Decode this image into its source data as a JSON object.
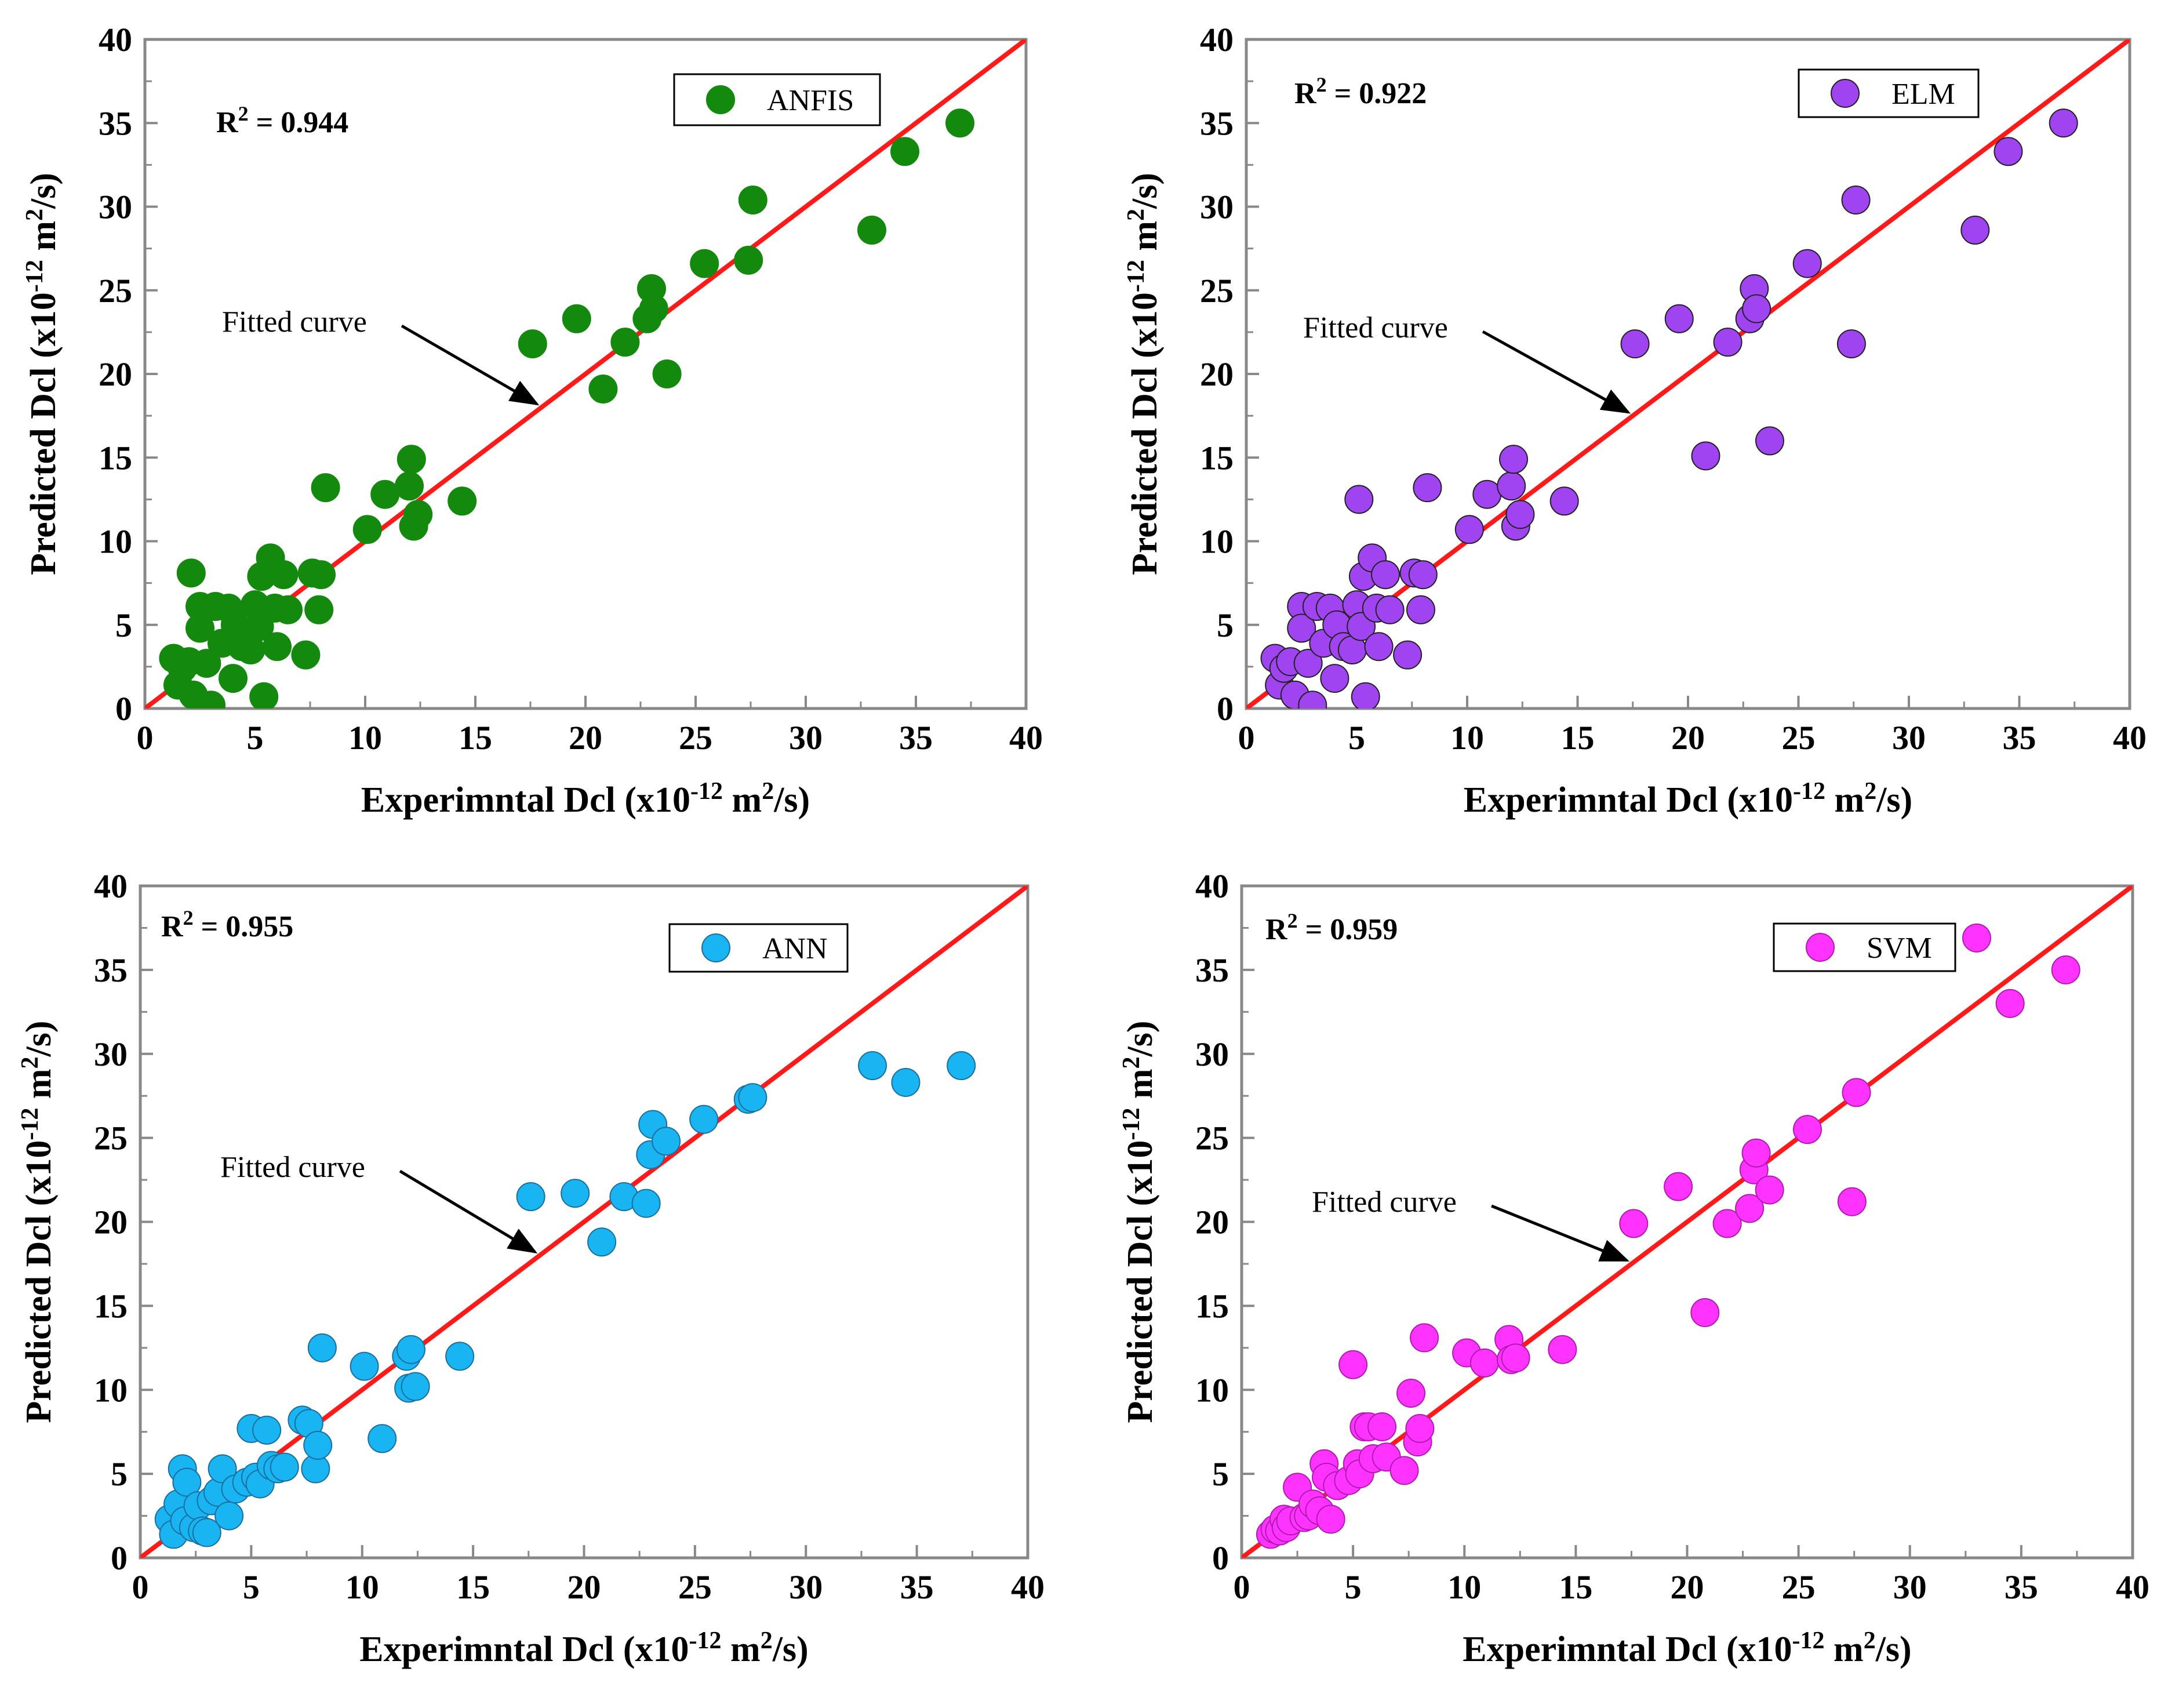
{
  "chart_data": [
    {
      "type": "scatter",
      "model": "ANFIS",
      "legend_label": "ANFIS",
      "r2_text": "R",
      "r2_sup": "2",
      "r2_value": " = 0.944",
      "annotation": "Fitted curve",
      "annotation_target": [
        18,
        18
      ],
      "xlabel_main": "Experimntal Dcl (x10",
      "xlabel_sup1": "-12",
      "xlabel_mid": " m",
      "xlabel_sup2": "2",
      "xlabel_end": "/s)",
      "ylabel_main": "Predicted Dcl (x10",
      "ylabel_sup1": "-12",
      "ylabel_mid": " m",
      "ylabel_sup2": "2",
      "ylabel_end": "/s)",
      "xlim": [
        0,
        40
      ],
      "ylim": [
        0,
        40
      ],
      "xticks": [
        "0",
        "5",
        "10",
        "15",
        "20",
        "25",
        "30",
        "35",
        "40"
      ],
      "yticks": [
        "0",
        "5",
        "10",
        "15",
        "20",
        "25",
        "30",
        "35",
        "40"
      ],
      "fit_line": [
        [
          0,
          0
        ],
        [
          40,
          40
        ]
      ],
      "marker_color": "#138a0e",
      "marker_edge": "#138a0e",
      "line_color": "#ff1a1a",
      "points": [
        [
          1.3,
          3
        ],
        [
          1.5,
          1.4
        ],
        [
          1.7,
          2.4
        ],
        [
          2,
          2.8
        ],
        [
          2.1,
          8.1
        ],
        [
          2.2,
          0.8
        ],
        [
          2.5,
          6.1
        ],
        [
          2.5,
          4.8
        ],
        [
          2.8,
          2.7
        ],
        [
          3,
          0.2
        ],
        [
          3.2,
          6.1
        ],
        [
          3.5,
          3.9
        ],
        [
          3.8,
          6
        ],
        [
          4,
          1.8
        ],
        [
          4.1,
          5
        ],
        [
          4.4,
          3.7
        ],
        [
          4.8,
          3.5
        ],
        [
          5,
          6.2
        ],
        [
          5.2,
          4.9
        ],
        [
          5.3,
          7.9
        ],
        [
          5.4,
          0.7
        ],
        [
          5.7,
          9
        ],
        [
          5.9,
          6
        ],
        [
          6,
          3.7
        ],
        [
          6.3,
          8
        ],
        [
          6.5,
          5.9
        ],
        [
          7.3,
          3.2
        ],
        [
          7.6,
          8.1
        ],
        [
          7.9,
          5.9
        ],
        [
          8,
          8
        ],
        [
          8.2,
          13.2
        ],
        [
          10.1,
          10.7
        ],
        [
          10.9,
          12.8
        ],
        [
          12,
          13.3
        ],
        [
          12.1,
          14.9
        ],
        [
          12.2,
          10.9
        ],
        [
          12.4,
          11.6
        ],
        [
          14.4,
          12.4
        ],
        [
          17.6,
          21.8
        ],
        [
          19.6,
          23.3
        ],
        [
          20.8,
          19.1
        ],
        [
          21.8,
          21.9
        ],
        [
          22.8,
          23.3
        ],
        [
          23,
          25.1
        ],
        [
          23.1,
          23.9
        ],
        [
          23.7,
          20
        ],
        [
          25.4,
          26.6
        ],
        [
          27.4,
          26.8
        ],
        [
          27.6,
          30.4
        ],
        [
          33,
          28.6
        ],
        [
          34.5,
          33.3
        ],
        [
          37,
          35
        ]
      ]
    },
    {
      "type": "scatter",
      "model": "ELM",
      "legend_label": "ELM",
      "r2_text": "R",
      "r2_sup": "2",
      "r2_value": " = 0.922",
      "annotation": "Fitted curve",
      "annotation_target": [
        17.5,
        17.5
      ],
      "xlabel_main": "Experimntal Dcl (x10",
      "xlabel_sup1": "-12",
      "xlabel_mid": " m",
      "xlabel_sup2": "2",
      "xlabel_end": "/s)",
      "ylabel_main": "Predicted Dcl (x10",
      "ylabel_sup1": "-12",
      "ylabel_mid": " m",
      "ylabel_sup2": "2",
      "ylabel_end": "/s)",
      "xlim": [
        0,
        40
      ],
      "ylim": [
        0,
        40
      ],
      "xticks": [
        "0",
        "5",
        "10",
        "15",
        "20",
        "25",
        "30",
        "35",
        "40"
      ],
      "yticks": [
        "0",
        "5",
        "10",
        "15",
        "20",
        "25",
        "30",
        "35",
        "40"
      ],
      "fit_line": [
        [
          0,
          0
        ],
        [
          40,
          40
        ]
      ],
      "marker_color": "#a044f2",
      "marker_edge": "#222222",
      "line_color": "#ff1a1a",
      "points": [
        [
          1.3,
          3
        ],
        [
          1.5,
          1.4
        ],
        [
          1.7,
          2.4
        ],
        [
          2,
          2.8
        ],
        [
          2.2,
          0.8
        ],
        [
          2.5,
          6.1
        ],
        [
          2.5,
          4.8
        ],
        [
          2.8,
          2.7
        ],
        [
          3,
          0.2
        ],
        [
          3.2,
          6.1
        ],
        [
          3.5,
          3.9
        ],
        [
          3.8,
          6
        ],
        [
          4,
          1.8
        ],
        [
          4.1,
          5
        ],
        [
          4.4,
          3.7
        ],
        [
          4.8,
          3.5
        ],
        [
          5,
          6.2
        ],
        [
          5.1,
          12.5
        ],
        [
          5.2,
          4.9
        ],
        [
          5.3,
          7.9
        ],
        [
          5.4,
          0.7
        ],
        [
          5.7,
          9
        ],
        [
          5.9,
          6
        ],
        [
          6,
          3.7
        ],
        [
          6.3,
          8
        ],
        [
          6.5,
          5.9
        ],
        [
          7.3,
          3.2
        ],
        [
          7.6,
          8.1
        ],
        [
          7.9,
          5.9
        ],
        [
          8,
          8
        ],
        [
          8.2,
          13.2
        ],
        [
          10.1,
          10.7
        ],
        [
          10.9,
          12.8
        ],
        [
          12,
          13.3
        ],
        [
          12.1,
          14.9
        ],
        [
          12.2,
          10.9
        ],
        [
          12.4,
          11.6
        ],
        [
          14.4,
          12.4
        ],
        [
          17.6,
          21.8
        ],
        [
          19.6,
          23.3
        ],
        [
          20.8,
          15.1
        ],
        [
          21.8,
          21.9
        ],
        [
          22.8,
          23.3
        ],
        [
          23,
          25.1
        ],
        [
          23.1,
          23.9
        ],
        [
          23.7,
          16
        ],
        [
          25.4,
          26.6
        ],
        [
          27.4,
          21.8
        ],
        [
          27.6,
          30.4
        ],
        [
          33,
          28.6
        ],
        [
          34.5,
          33.3
        ],
        [
          37,
          35
        ]
      ]
    },
    {
      "type": "scatter",
      "model": "ANN",
      "legend_label": "ANN",
      "r2_text": "R",
      "r2_sup": "2",
      "r2_value": " = 0.955",
      "annotation": "Fitted curve",
      "annotation_target": [
        18,
        18
      ],
      "xlabel_main": "Experimntal Dcl (x10",
      "xlabel_sup1": "-12",
      "xlabel_mid": " m",
      "xlabel_sup2": "2",
      "xlabel_end": "/s)",
      "ylabel_main": "Predicted Dcl (x10",
      "ylabel_sup1": "-12",
      "ylabel_mid": " m",
      "ylabel_sup2": "2",
      "ylabel_end": "/s)",
      "xlim": [
        0,
        40
      ],
      "ylim": [
        0,
        40
      ],
      "xticks": [
        "0",
        "5",
        "10",
        "15",
        "20",
        "25",
        "30",
        "35",
        "40"
      ],
      "yticks": [
        "0",
        "5",
        "10",
        "15",
        "20",
        "25",
        "30",
        "35",
        "40"
      ],
      "fit_line": [
        [
          0,
          0
        ],
        [
          40,
          40
        ]
      ],
      "marker_color": "#19b4f2",
      "marker_edge": "#1a6fa0",
      "line_color": "#ff1a1a",
      "points": [
        [
          1.3,
          2.3
        ],
        [
          1.5,
          1.4
        ],
        [
          1.7,
          3.2
        ],
        [
          1.9,
          5.3
        ],
        [
          2,
          2.2
        ],
        [
          2.1,
          4.5
        ],
        [
          2.4,
          1.8
        ],
        [
          2.6,
          3.1
        ],
        [
          2.8,
          1.6
        ],
        [
          3,
          1.5
        ],
        [
          3.2,
          3.4
        ],
        [
          3.5,
          3.9
        ],
        [
          3.7,
          5.3
        ],
        [
          4,
          2.5
        ],
        [
          4.3,
          4.1
        ],
        [
          4.8,
          4.5
        ],
        [
          5,
          7.7
        ],
        [
          5.2,
          4.8
        ],
        [
          5.4,
          4.4
        ],
        [
          5.7,
          7.6
        ],
        [
          5.9,
          5.5
        ],
        [
          6.2,
          5.3
        ],
        [
          6.5,
          5.4
        ],
        [
          7.3,
          8.2
        ],
        [
          7.6,
          8
        ],
        [
          7.9,
          5.3
        ],
        [
          8,
          6.7
        ],
        [
          8.2,
          12.5
        ],
        [
          10.1,
          11.4
        ],
        [
          10.9,
          7.1
        ],
        [
          12,
          12
        ],
        [
          12.1,
          10.1
        ],
        [
          12.2,
          12.4
        ],
        [
          12.4,
          10.2
        ],
        [
          14.4,
          12
        ],
        [
          17.6,
          21.5
        ],
        [
          19.6,
          21.7
        ],
        [
          20.8,
          18.8
        ],
        [
          21.8,
          21.5
        ],
        [
          22.8,
          21.1
        ],
        [
          23,
          24
        ],
        [
          23.1,
          25.8
        ],
        [
          23.7,
          24.8
        ],
        [
          25.4,
          26.1
        ],
        [
          27.4,
          27.3
        ],
        [
          27.6,
          27.4
        ],
        [
          33,
          29.3
        ],
        [
          34.5,
          28.3
        ],
        [
          37,
          29.3
        ]
      ]
    },
    {
      "type": "scatter",
      "model": "SVM",
      "legend_label": "SVM",
      "r2_text": "R",
      "r2_sup": "2",
      "r2_value": " = 0.959",
      "annotation": "Fitted curve",
      "annotation_target": [
        17.5,
        17.5
      ],
      "xlabel_main": "Experimntal Dcl (x10",
      "xlabel_sup1": "-12",
      "xlabel_mid": " m",
      "xlabel_sup2": "2",
      "xlabel_end": "/s)",
      "ylabel_main": "Predicted Dcl (x10",
      "ylabel_sup1": "-12",
      "ylabel_mid": " m",
      "ylabel_sup2": "2",
      "ylabel_end": "/s)",
      "xlim": [
        0,
        40
      ],
      "ylim": [
        0,
        40
      ],
      "xticks": [
        "0",
        "5",
        "10",
        "15",
        "20",
        "25",
        "30",
        "35",
        "40"
      ],
      "yticks": [
        "0",
        "5",
        "10",
        "15",
        "20",
        "25",
        "30",
        "35",
        "40"
      ],
      "fit_line": [
        [
          0,
          0
        ],
        [
          40,
          40
        ]
      ],
      "marker_color": "#ff33ff",
      "marker_edge": "#b01ab0",
      "line_color": "#ff1a1a",
      "points": [
        [
          1.3,
          1.4
        ],
        [
          1.5,
          1.7
        ],
        [
          1.7,
          1.6
        ],
        [
          1.9,
          2.3
        ],
        [
          2,
          1.8
        ],
        [
          2.2,
          2.2
        ],
        [
          2.5,
          4.2
        ],
        [
          2.8,
          2.4
        ],
        [
          3,
          2.5
        ],
        [
          3.2,
          3.2
        ],
        [
          3.5,
          2.8
        ],
        [
          3.7,
          5.6
        ],
        [
          3.8,
          4.8
        ],
        [
          4,
          2.3
        ],
        [
          4.3,
          4.3
        ],
        [
          4.8,
          4.6
        ],
        [
          5,
          11.5
        ],
        [
          5.2,
          5.6
        ],
        [
          5.3,
          5
        ],
        [
          5.5,
          7.8
        ],
        [
          5.7,
          7.8
        ],
        [
          5.9,
          5.9
        ],
        [
          6.3,
          7.8
        ],
        [
          6.5,
          6
        ],
        [
          7.3,
          5.2
        ],
        [
          7.6,
          9.8
        ],
        [
          7.9,
          6.9
        ],
        [
          8,
          7.7
        ],
        [
          8.2,
          13.1
        ],
        [
          10.1,
          12.2
        ],
        [
          10.9,
          11.6
        ],
        [
          12,
          13
        ],
        [
          12.1,
          11.8
        ],
        [
          12.3,
          11.9
        ],
        [
          14.4,
          12.4
        ],
        [
          17.6,
          19.9
        ],
        [
          19.6,
          22.1
        ],
        [
          20.8,
          14.6
        ],
        [
          21.8,
          19.9
        ],
        [
          22.8,
          20.8
        ],
        [
          23,
          23.1
        ],
        [
          23.1,
          24.1
        ],
        [
          23.7,
          21.9
        ],
        [
          25.4,
          25.5
        ],
        [
          27.4,
          21.2
        ],
        [
          27.6,
          27.7
        ],
        [
          33,
          36.9
        ],
        [
          34.5,
          33
        ],
        [
          37,
          35
        ]
      ]
    }
  ]
}
